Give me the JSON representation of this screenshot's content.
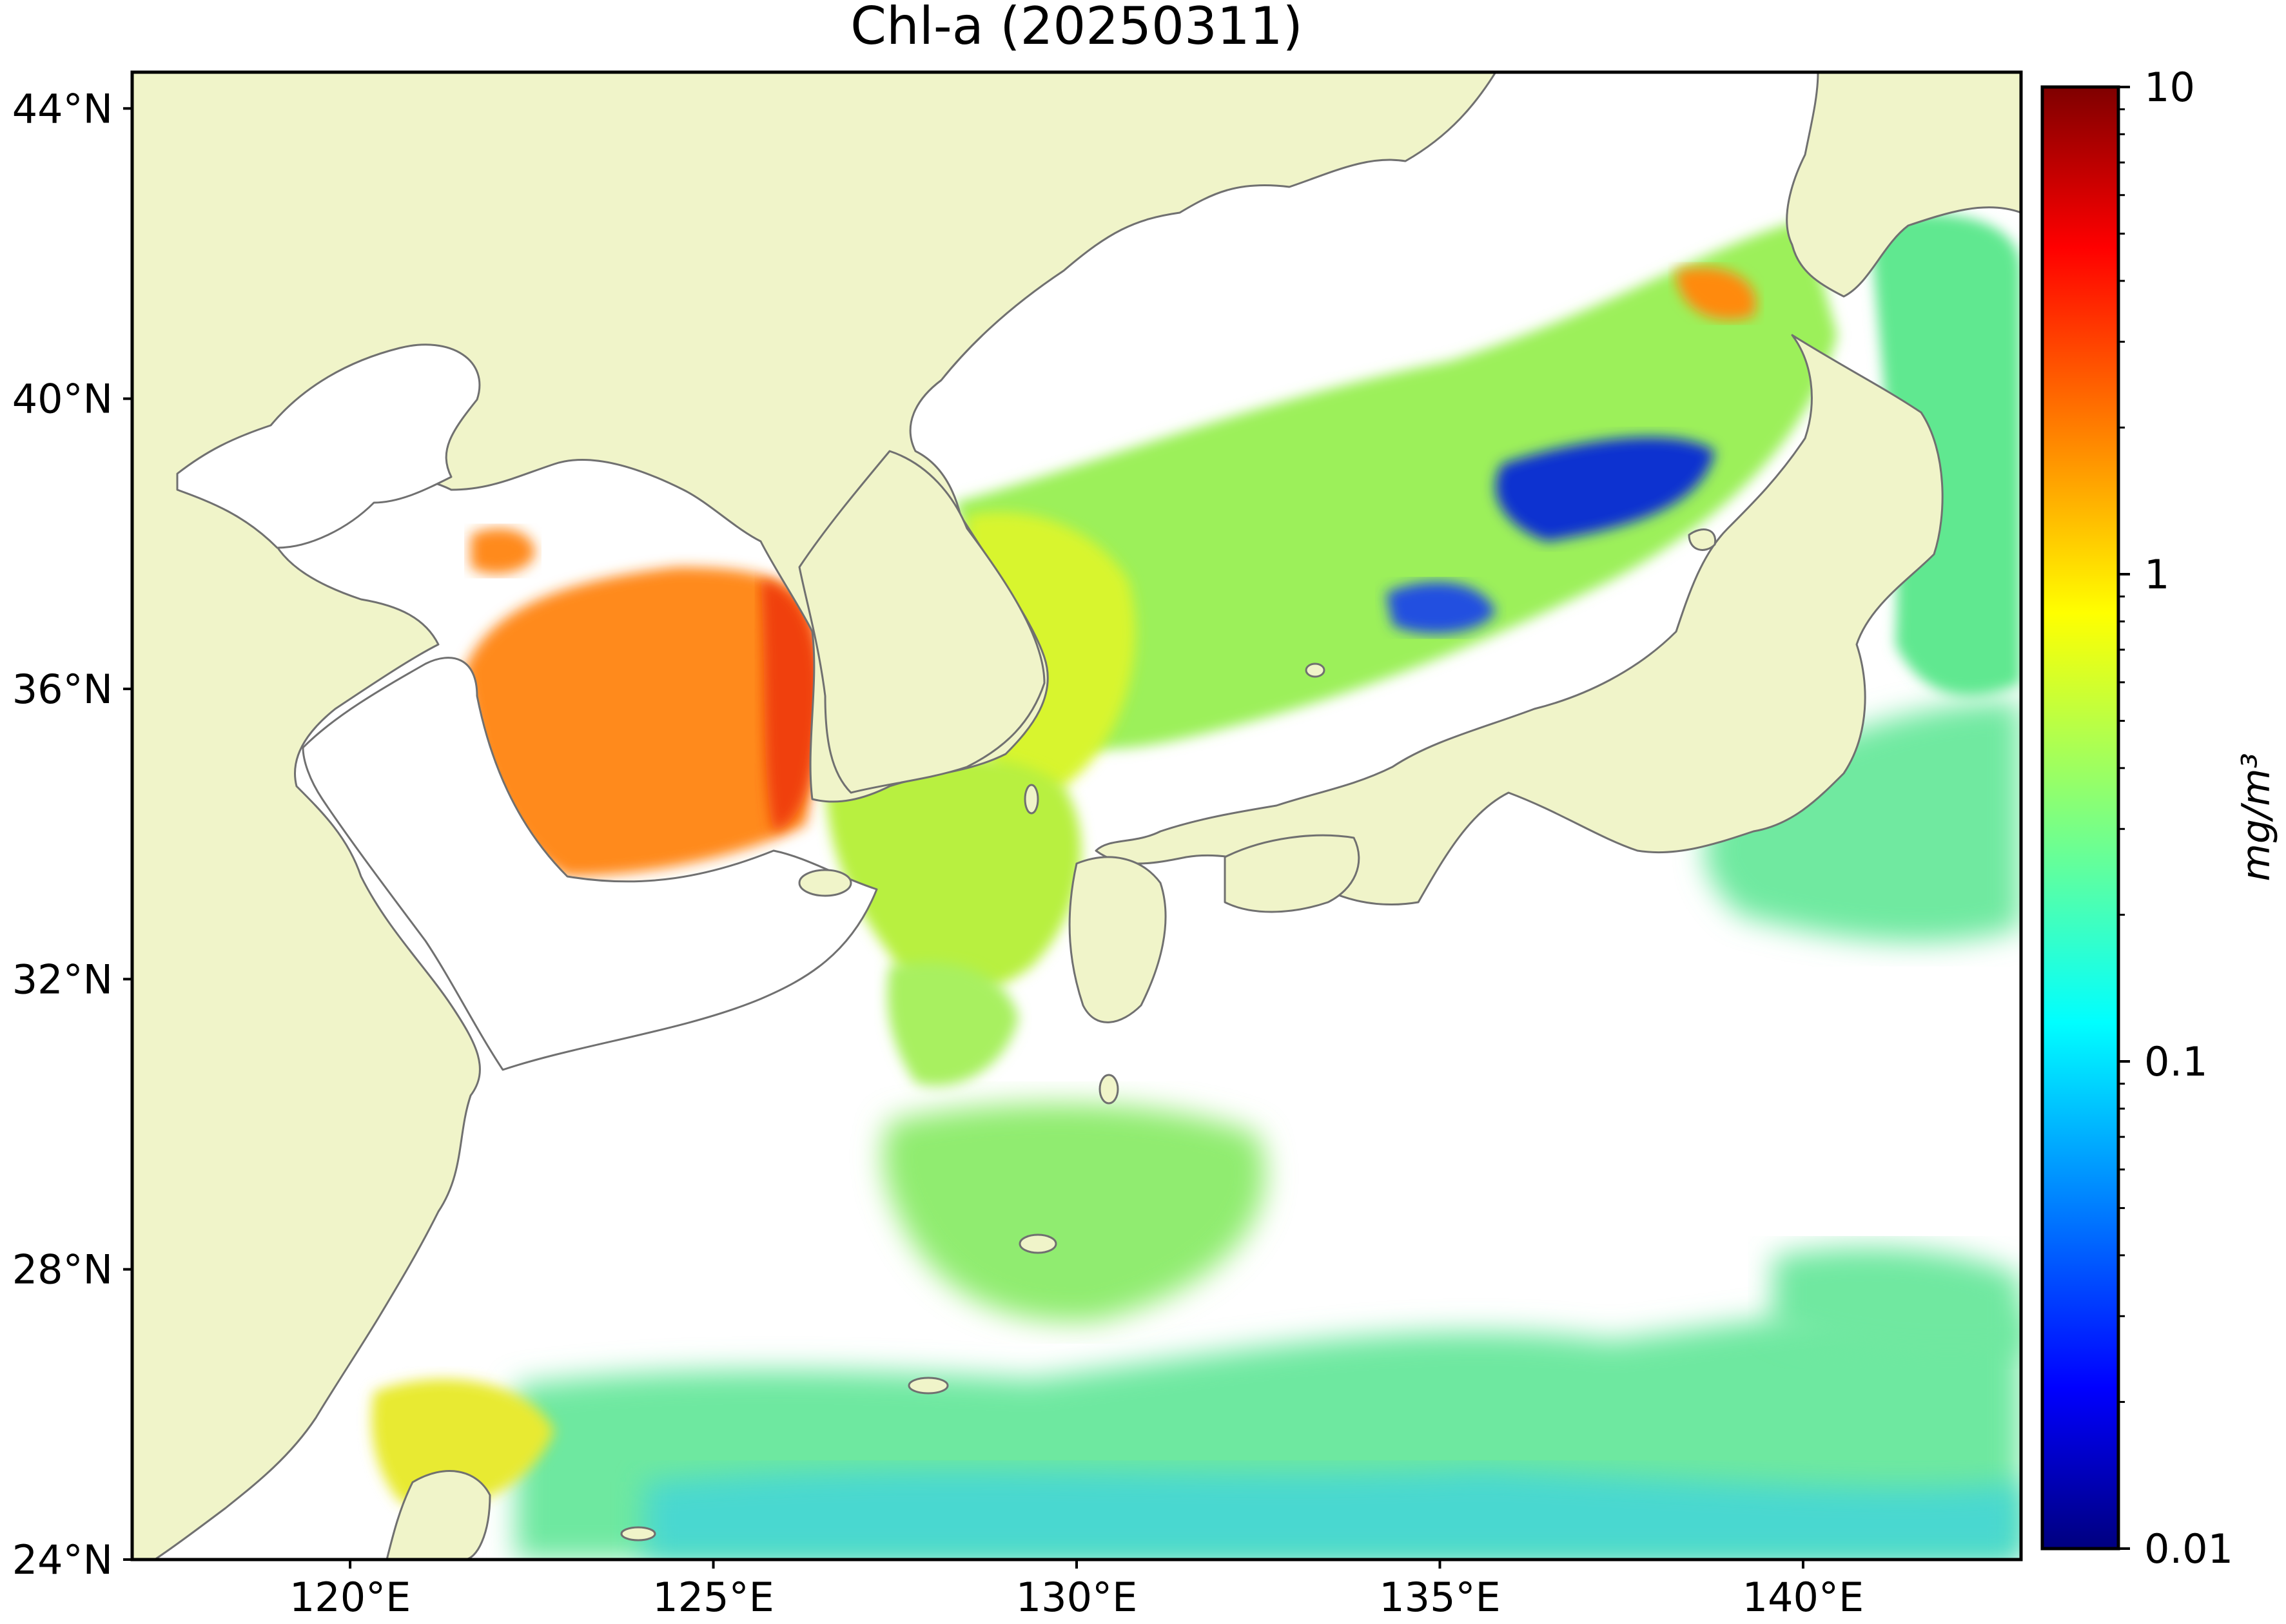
{
  "title": "Chl-a (20250311)",
  "map": {
    "lat_range": [
      24,
      44.5
    ],
    "lon_range": [
      117,
      143
    ],
    "lat_ticks": [
      {
        "value": 44,
        "label": "44°N"
      },
      {
        "value": 40,
        "label": "40°N"
      },
      {
        "value": 36,
        "label": "36°N"
      },
      {
        "value": 32,
        "label": "32°N"
      },
      {
        "value": 28,
        "label": "28°N"
      },
      {
        "value": 24,
        "label": "24°N"
      }
    ],
    "lon_ticks": [
      {
        "value": 120,
        "label": "120°E"
      },
      {
        "value": 125,
        "label": "125°E"
      },
      {
        "value": 130,
        "label": "130°E"
      },
      {
        "value": 135,
        "label": "135°E"
      },
      {
        "value": 140,
        "label": "140°E"
      }
    ],
    "colors": {
      "land": "#f0f4c9",
      "coastline": "#707070",
      "nodata": "#ffffff"
    }
  },
  "colorbar": {
    "label": "mg/m³",
    "scale": "log",
    "range": [
      0.01,
      10
    ],
    "ticks": [
      {
        "value": 10,
        "label": "10"
      },
      {
        "value": 1,
        "label": "1"
      },
      {
        "value": 0.1,
        "label": "0.1"
      },
      {
        "value": 0.01,
        "label": "0.01"
      }
    ],
    "colormap": "jet"
  }
}
